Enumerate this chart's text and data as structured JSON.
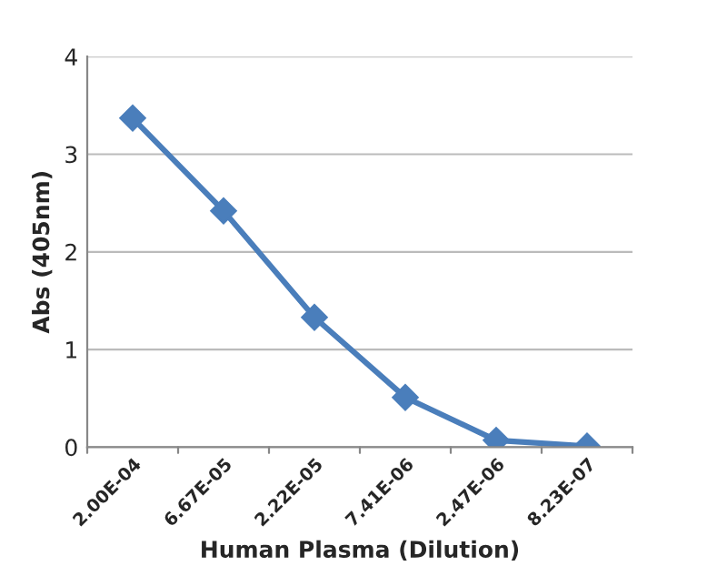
{
  "chart_data": {
    "type": "line",
    "xlabel": "Human Plasma (Dilution)",
    "ylabel": "Abs (405nm)",
    "categories": [
      "2.00E-04",
      "6.67E-05",
      "2.22E-05",
      "7.41E-06",
      "2.47E-06",
      "8.23E-07"
    ],
    "series": [
      {
        "color": "#4a7ebb",
        "values": [
          3.37,
          2.42,
          1.33,
          0.51,
          0.07,
          0.01
        ]
      }
    ],
    "ylim": [
      0,
      4
    ],
    "yticks": [
      0,
      1,
      2,
      3,
      4
    ],
    "grid": "y",
    "marker": "diamond",
    "line_style": "solid"
  }
}
